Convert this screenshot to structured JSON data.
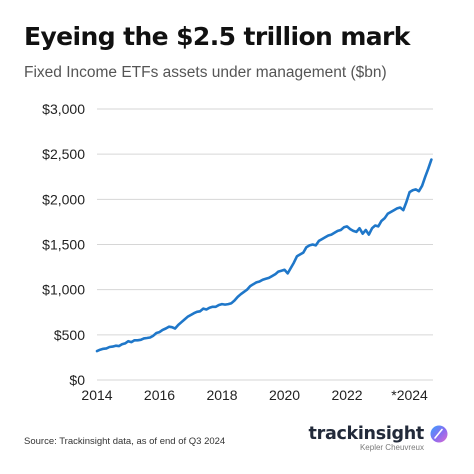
{
  "header": {
    "title": "Eyeing the $2.5 trillion mark",
    "subtitle": "Fixed Income ETFs assets under management ($bn)"
  },
  "footer": {
    "source": "Source: Trackinsight data, as of end of Q3 2024",
    "brand_name": "trackinsight",
    "brand_sub": "Kepler Cheuvreux"
  },
  "colors": {
    "line": "#1f77c9",
    "grid": "#d6d6d6",
    "text": "#222222"
  },
  "chart_data": {
    "type": "line",
    "xlim": [
      2014,
      2024.75
    ],
    "ylim": [
      0,
      3000
    ],
    "x_ticks": [
      {
        "value": 2014,
        "label": "2014"
      },
      {
        "value": 2016,
        "label": "2016"
      },
      {
        "value": 2018,
        "label": "2018"
      },
      {
        "value": 2020,
        "label": "2020"
      },
      {
        "value": 2022,
        "label": "2022"
      },
      {
        "value": 2024,
        "label": "*2024"
      }
    ],
    "y_ticks": [
      {
        "value": 0,
        "label": "$0"
      },
      {
        "value": 500,
        "label": "$500"
      },
      {
        "value": 1000,
        "label": "$1,000"
      },
      {
        "value": 1500,
        "label": "$1,500"
      },
      {
        "value": 2000,
        "label": "$2,000"
      },
      {
        "value": 2500,
        "label": "$2,500"
      },
      {
        "value": 3000,
        "label": "$3,000"
      }
    ],
    "grid": true,
    "series": [
      {
        "x": [
          2014.0,
          2014.1,
          2014.2,
          2014.3,
          2014.4,
          2014.5,
          2014.6,
          2014.7,
          2014.8,
          2014.9,
          2015.0,
          2015.1,
          2015.2,
          2015.3,
          2015.4,
          2015.5,
          2015.6,
          2015.7,
          2015.8,
          2015.9,
          2016.0,
          2016.1,
          2016.2,
          2016.3,
          2016.4,
          2016.5,
          2016.6,
          2016.7,
          2016.8,
          2016.9,
          2017.0,
          2017.1,
          2017.2,
          2017.3,
          2017.4,
          2017.5,
          2017.6,
          2017.7,
          2017.8,
          2017.9,
          2018.0,
          2018.1,
          2018.2,
          2018.3,
          2018.4,
          2018.5,
          2018.6,
          2018.7,
          2018.8,
          2018.9,
          2019.0,
          2019.1,
          2019.2,
          2019.3,
          2019.4,
          2019.5,
          2019.6,
          2019.7,
          2019.8,
          2019.9,
          2020.0,
          2020.1,
          2020.2,
          2020.3,
          2020.4,
          2020.5,
          2020.6,
          2020.7,
          2020.8,
          2020.9,
          2021.0,
          2021.1,
          2021.2,
          2021.3,
          2021.4,
          2021.5,
          2021.6,
          2021.7,
          2021.8,
          2021.9,
          2022.0,
          2022.1,
          2022.2,
          2022.3,
          2022.4,
          2022.5,
          2022.6,
          2022.7,
          2022.8,
          2022.9,
          2023.0,
          2023.1,
          2023.2,
          2023.3,
          2023.4,
          2023.5,
          2023.6,
          2023.7,
          2023.8,
          2023.9,
          2024.0,
          2024.1,
          2024.2,
          2024.3,
          2024.4,
          2024.5,
          2024.6,
          2024.7
        ],
        "values": [
          320,
          335,
          345,
          350,
          365,
          370,
          380,
          375,
          395,
          405,
          430,
          420,
          440,
          440,
          445,
          460,
          465,
          470,
          490,
          520,
          530,
          555,
          570,
          590,
          585,
          570,
          610,
          640,
          670,
          700,
          720,
          740,
          755,
          760,
          790,
          780,
          800,
          810,
          810,
          830,
          840,
          835,
          840,
          850,
          880,
          920,
          950,
          975,
          1000,
          1040,
          1060,
          1080,
          1090,
          1110,
          1120,
          1130,
          1150,
          1170,
          1200,
          1210,
          1220,
          1180,
          1240,
          1300,
          1370,
          1390,
          1410,
          1470,
          1490,
          1500,
          1490,
          1540,
          1560,
          1580,
          1600,
          1610,
          1630,
          1650,
          1660,
          1690,
          1700,
          1670,
          1650,
          1640,
          1680,
          1620,
          1660,
          1610,
          1680,
          1710,
          1700,
          1760,
          1790,
          1840,
          1860,
          1880,
          1900,
          1910,
          1880,
          1970,
          2080,
          2100,
          2110,
          2090,
          2150,
          2250,
          2340,
          2440
        ]
      }
    ]
  }
}
